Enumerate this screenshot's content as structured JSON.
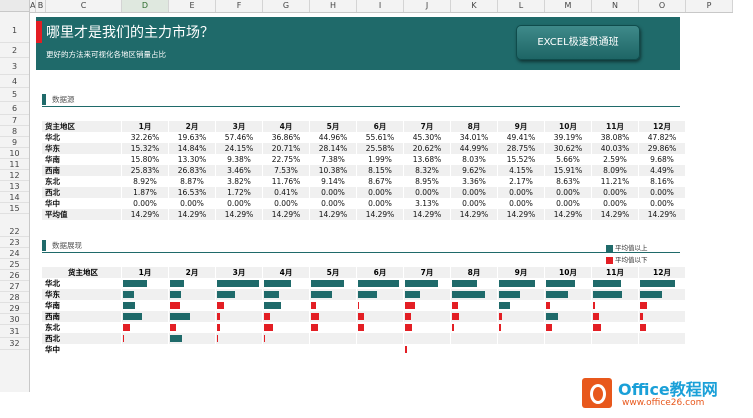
{
  "columns": [
    "A",
    "B",
    "C",
    "D",
    "E",
    "F",
    "G",
    "H",
    "I",
    "J",
    "K",
    "L",
    "M",
    "N",
    "O",
    "P"
  ],
  "selected_column": "D",
  "rows": [
    "1",
    "2",
    "3",
    "4",
    "5",
    "6",
    "7",
    "8",
    "9",
    "10",
    "11",
    "12",
    "13",
    "14",
    "15",
    "22",
    "23",
    "24",
    "25",
    "26",
    "27",
    "28",
    "29",
    "30",
    "31",
    "32"
  ],
  "banner": {
    "title": "哪里才是我们的主力市场？",
    "subtitle": "更好的方法来可视化各地区销量占比",
    "button_label": "EXCEL极速贯通班"
  },
  "section1": {
    "label": "数据源"
  },
  "section2": {
    "label": "数据展现"
  },
  "table": {
    "header": "货主地区",
    "months": [
      "1月",
      "2月",
      "3月",
      "4月",
      "5月",
      "6月",
      "7月",
      "8月",
      "9月",
      "10月",
      "11月",
      "12月"
    ],
    "rows": [
      {
        "region": "华北",
        "values": [
          "32.26%",
          "19.63%",
          "57.46%",
          "36.86%",
          "44.96%",
          "55.61%",
          "45.30%",
          "34.01%",
          "49.41%",
          "39.19%",
          "38.08%",
          "47.82%"
        ]
      },
      {
        "region": "华东",
        "values": [
          "15.32%",
          "14.84%",
          "24.15%",
          "20.71%",
          "28.14%",
          "25.58%",
          "20.62%",
          "44.99%",
          "28.75%",
          "30.62%",
          "40.03%",
          "29.86%"
        ]
      },
      {
        "region": "华南",
        "values": [
          "15.80%",
          "13.30%",
          "9.38%",
          "22.75%",
          "7.38%",
          "1.99%",
          "13.68%",
          "8.03%",
          "15.52%",
          "5.66%",
          "2.59%",
          "9.68%"
        ]
      },
      {
        "region": "西南",
        "values": [
          "25.83%",
          "26.83%",
          "3.46%",
          "7.53%",
          "10.38%",
          "8.15%",
          "8.32%",
          "9.62%",
          "4.15%",
          "15.91%",
          "8.09%",
          "4.49%"
        ]
      },
      {
        "region": "东北",
        "values": [
          "8.92%",
          "8.87%",
          "3.82%",
          "11.76%",
          "9.14%",
          "8.67%",
          "8.95%",
          "3.36%",
          "2.17%",
          "8.63%",
          "11.21%",
          "8.16%"
        ]
      },
      {
        "region": "西北",
        "values": [
          "1.87%",
          "16.53%",
          "1.72%",
          "0.41%",
          "0.00%",
          "0.00%",
          "0.00%",
          "0.00%",
          "0.00%",
          "0.00%",
          "0.00%",
          "0.00%"
        ]
      },
      {
        "region": "华中",
        "values": [
          "0.00%",
          "0.00%",
          "0.00%",
          "0.00%",
          "0.00%",
          "0.00%",
          "3.13%",
          "0.00%",
          "0.00%",
          "0.00%",
          "0.00%",
          "0.00%"
        ]
      },
      {
        "region": "平均值",
        "values": [
          "14.29%",
          "14.29%",
          "14.29%",
          "14.29%",
          "14.29%",
          "14.29%",
          "14.29%",
          "14.29%",
          "14.29%",
          "14.29%",
          "14.29%",
          "14.29%"
        ]
      }
    ]
  },
  "legend": {
    "above": "平均值以上",
    "below": "平均值以下",
    "above_color": "#1f6a6a",
    "below_color": "#e31e24"
  },
  "viz": {
    "header": "货主地区",
    "average": 14.29,
    "max_scale": 57.46,
    "regions": [
      "华北",
      "华东",
      "华南",
      "西南",
      "东北",
      "西北",
      "华中"
    ],
    "values": [
      [
        32.26,
        19.63,
        57.46,
        36.86,
        44.96,
        55.61,
        45.3,
        34.01,
        49.41,
        39.19,
        38.08,
        47.82
      ],
      [
        15.32,
        14.84,
        24.15,
        20.71,
        28.14,
        25.58,
        20.62,
        44.99,
        28.75,
        30.62,
        40.03,
        29.86
      ],
      [
        15.8,
        13.3,
        9.38,
        22.75,
        7.38,
        1.99,
        13.68,
        8.03,
        15.52,
        5.66,
        2.59,
        9.68
      ],
      [
        25.83,
        26.83,
        3.46,
        7.53,
        10.38,
        8.15,
        8.32,
        9.62,
        4.15,
        15.91,
        8.09,
        4.49
      ],
      [
        8.92,
        8.87,
        3.82,
        11.76,
        9.14,
        8.67,
        8.95,
        3.36,
        2.17,
        8.63,
        11.21,
        8.16
      ],
      [
        1.87,
        16.53,
        1.72,
        0.41,
        0,
        0,
        0,
        0,
        0,
        0,
        0,
        0
      ],
      [
        0,
        0,
        0,
        0,
        0,
        0,
        3.13,
        0,
        0,
        0,
        0,
        0
      ]
    ]
  },
  "watermark": {
    "brand": "Office教程网",
    "url": "www.office26.com"
  }
}
